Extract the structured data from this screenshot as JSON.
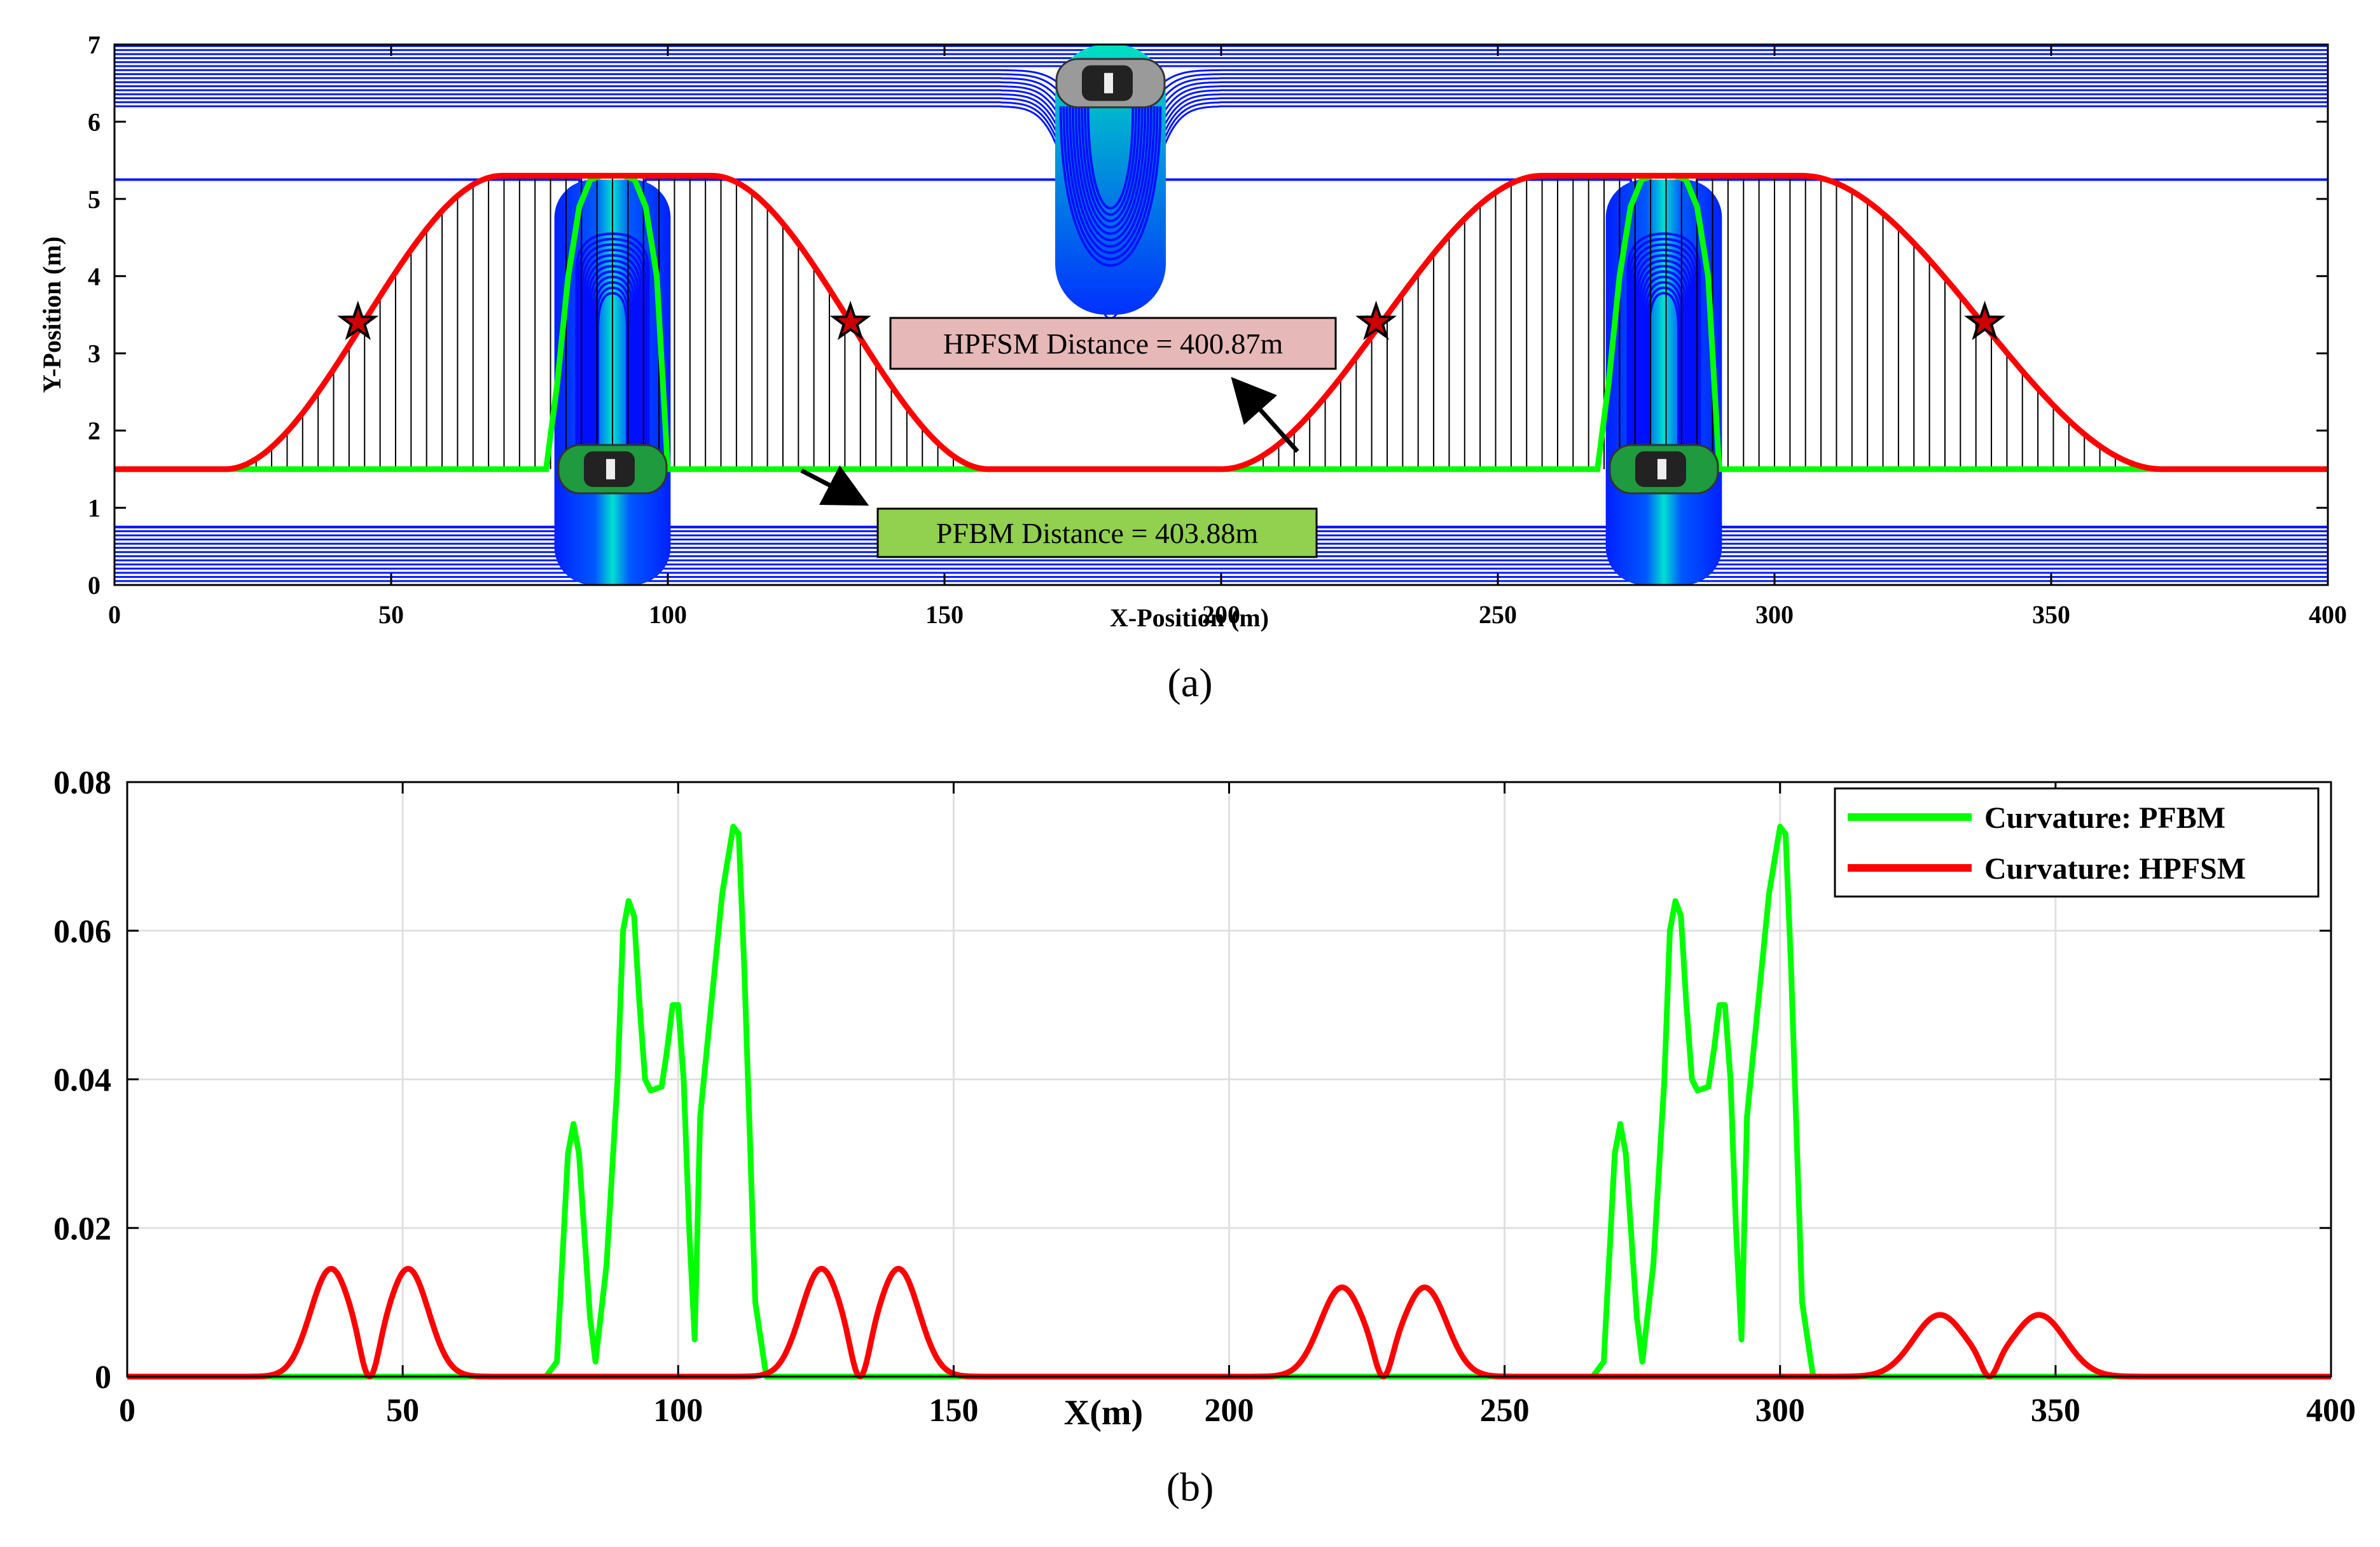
{
  "chart_data": [
    {
      "type": "line",
      "panel_label": "(a)",
      "xlabel": "X-Position (m)",
      "ylabel": "Y-Position (m)",
      "xlim": [
        0,
        400
      ],
      "ylim": [
        0,
        7
      ],
      "xticks": [
        0,
        50,
        100,
        150,
        200,
        250,
        300,
        350,
        400
      ],
      "yticks": [
        0,
        1,
        2,
        3,
        4,
        5,
        6,
        7
      ],
      "grid": false,
      "lane_centers": [
        1.5,
        5.3
      ],
      "field_boundary_lines": {
        "lower": 0.75,
        "upper_lane": 5.25,
        "top": 6.2
      },
      "obstacles": [
        {
          "name": "green car 1",
          "x": 90,
          "y": 1.5,
          "color": "#1f9a3f"
        },
        {
          "name": "green car 2",
          "x": 280,
          "y": 1.5,
          "color": "#1f9a3f"
        },
        {
          "name": "gray car",
          "x": 180,
          "y": 6.5,
          "color": "#9a9a9a"
        }
      ],
      "series": [
        {
          "name": "PFBM",
          "color": "#00ff00",
          "x": [
            0,
            78,
            80,
            82,
            84,
            86,
            88,
            92,
            94,
            96,
            98,
            100,
            400
          ],
          "y": [
            1.5,
            1.5,
            2.6,
            4.0,
            4.9,
            5.25,
            5.3,
            5.3,
            5.25,
            4.9,
            4.0,
            1.5,
            1.5
          ],
          "x_alt": [
            0,
            268,
            270,
            272,
            274,
            276,
            278,
            282,
            284,
            286,
            288,
            290,
            400
          ]
        },
        {
          "name": "HPFSM",
          "color": "#ff0000",
          "segments": [
            {
              "x_start": 20,
              "x_end": 70,
              "y_from": 1.5,
              "y_to": 5.3
            },
            {
              "x_start": 108,
              "x_end": 158,
              "y_from": 5.3,
              "y_to": 1.5
            },
            {
              "x_start": 200,
              "x_end": 258,
              "y_from": 1.5,
              "y_to": 5.3
            },
            {
              "x_start": 305,
              "x_end": 370,
              "y_from": 5.3,
              "y_to": 1.5
            }
          ]
        }
      ],
      "star_markers": [
        {
          "x": 44,
          "y": 3.4
        },
        {
          "x": 133,
          "y": 3.4
        },
        {
          "x": 228,
          "y": 3.4
        },
        {
          "x": 338,
          "y": 3.4
        }
      ],
      "annotations": [
        {
          "text": "HPFSM Distance = 400.87m",
          "box_color": "#e6b8b7",
          "arrow_to": [
            215,
            1.8
          ]
        },
        {
          "text": "PFBM Distance = 403.88m",
          "box_color": "#92d050",
          "arrow_to": [
            123,
            0.72
          ]
        }
      ]
    },
    {
      "type": "line",
      "panel_label": "(b)",
      "xlabel": "X(m)",
      "ylabel": "",
      "xlim": [
        0,
        400
      ],
      "ylim": [
        0,
        0.08
      ],
      "xticks": [
        0,
        50,
        100,
        150,
        200,
        250,
        300,
        350,
        400
      ],
      "yticks": [
        0,
        0.02,
        0.04,
        0.06,
        0.08
      ],
      "ytick_labels": [
        "0",
        "0.02",
        "0.04",
        "0.06",
        "0.08"
      ],
      "grid": true,
      "legend": "top-right",
      "series": [
        {
          "name": "Curvature: PFBM",
          "color": "#00ff00",
          "x": [
            0,
            76,
            78,
            80,
            81,
            82,
            84,
            85,
            87,
            89,
            90,
            91,
            92,
            93,
            94,
            95,
            97,
            98,
            99,
            100,
            101,
            102,
            103,
            104,
            106,
            108,
            110,
            111,
            112,
            114,
            116,
            400
          ],
          "y": [
            0,
            0,
            0.002,
            0.03,
            0.034,
            0.03,
            0.008,
            0.002,
            0.015,
            0.04,
            0.06,
            0.064,
            0.062,
            0.05,
            0.04,
            0.0385,
            0.039,
            0.044,
            0.05,
            0.05,
            0.04,
            0.02,
            0.005,
            0.035,
            0.05,
            0.065,
            0.074,
            0.073,
            0.055,
            0.01,
            0,
            0
          ],
          "x_alt": [
            0,
            266,
            268,
            270,
            271,
            272,
            274,
            275,
            277,
            279,
            280,
            281,
            282,
            283,
            284,
            285,
            287,
            288,
            289,
            290,
            291,
            292,
            293,
            294,
            296,
            298,
            300,
            301,
            302,
            304,
            306,
            400
          ]
        },
        {
          "name": "Curvature: HPFSM",
          "color": "#ff0000",
          "bumps": [
            {
              "center": 44,
              "peak": 0.0145,
              "width": 7
            },
            {
              "center": 133,
              "peak": 0.0145,
              "width": 7
            },
            {
              "center": 228,
              "peak": 0.012,
              "width": 7.5
            },
            {
              "center": 338,
              "peak": 0.0083,
              "width": 9
            }
          ]
        }
      ]
    }
  ]
}
